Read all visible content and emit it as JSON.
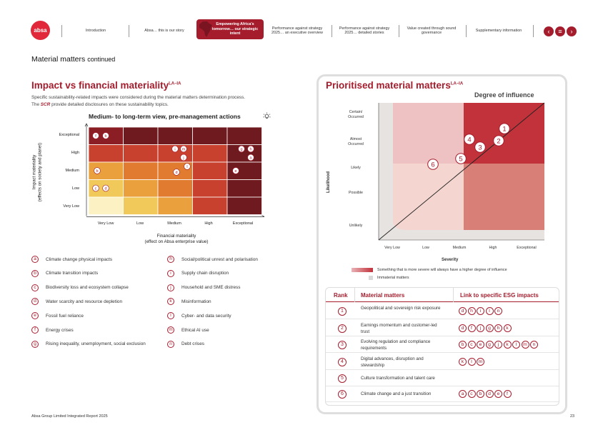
{
  "logo": "absa",
  "nav": {
    "items": [
      "Introduction",
      "Absa… this is our story",
      "Empowering Africa's tomorrow… our strategic intent",
      "Performance against strategy 2025… an executive overview",
      "Performance against strategy 2025… detailed stories",
      "Value created through sound governance",
      "Supplementary information"
    ],
    "active_index": 2,
    "buttons": [
      "‹",
      "≡",
      "›"
    ]
  },
  "section": {
    "title": "Material matters",
    "continued": "continued"
  },
  "left": {
    "title": "Impact vs financial materiality",
    "title_sup": "LA–IA",
    "desc_line1": "Specific sustainability-related impacts were considered during the material matters determination process.",
    "desc_scr": "SCR",
    "desc_line2_prefix": "The ",
    "desc_line2_suffix": " provide detailed disclosures on these sustainability topics.",
    "subtitle": "Medium- to long-term view, pre-management actions",
    "y_axis_label_1": "Impact materiality",
    "y_axis_label_2": "(effects on society and planet)",
    "x_axis_label_1": "Financial materiality",
    "x_axis_label_2": "(effect on Absa enterprise value)",
    "rows": [
      "Exceptional",
      "High",
      "Medium",
      "Low",
      "Very Low"
    ],
    "cols": [
      "Very Low",
      "Low",
      "Medium",
      "High",
      "Exceptional"
    ],
    "colors": {
      "darkest": "#6e1a1f",
      "dark": "#8a1e24",
      "red": "#c8402e",
      "orange": "#e07b2f",
      "amber": "#eaa03d",
      "yellow": "#f0c95a",
      "pale": "#fbf1c2"
    },
    "legend": [
      {
        "code": "a",
        "label": "Climate change physical impacts"
      },
      {
        "code": "b",
        "label": "Climate transition impacts"
      },
      {
        "code": "c",
        "label": "Biodiversity loss and ecosystem collapse"
      },
      {
        "code": "d",
        "label": "Water scarcity and resource depletion"
      },
      {
        "code": "e",
        "label": "Fossil fuel reliance"
      },
      {
        "code": "f",
        "label": "Energy crises"
      },
      {
        "code": "g",
        "label": "Rising inequality, unemployment, social exclusion"
      },
      {
        "code": "h",
        "label": "Social/political unrest and polarisation"
      },
      {
        "code": "i",
        "label": "Supply chain disruption"
      },
      {
        "code": "j",
        "label": "Household and SME distress"
      },
      {
        "code": "k",
        "label": "Misinformation"
      },
      {
        "code": "l",
        "label": "Cyber- and data security"
      },
      {
        "code": "m",
        "label": "Ethical AI use"
      },
      {
        "code": "n",
        "label": "Debt crises"
      }
    ]
  },
  "chart_data": {
    "type": "heatmap",
    "title": "Medium- to long-term view, pre-management actions",
    "xlabel": "Financial materiality (effect on Absa enterprise value)",
    "ylabel": "Impact materiality (effects on society and planet)",
    "x_categories": [
      "Very Low",
      "Low",
      "Medium",
      "High",
      "Exceptional"
    ],
    "y_categories": [
      "Exceptional",
      "High",
      "Medium",
      "Low",
      "Very Low"
    ],
    "cell_colors": [
      [
        "dark",
        "darkest",
        "darkest",
        "darkest",
        "darkest"
      ],
      [
        "red",
        "red",
        "red",
        "red",
        "darkest"
      ],
      [
        "amber",
        "orange",
        "orange",
        "red",
        "darkest"
      ],
      [
        "yellow",
        "amber",
        "orange",
        "red",
        "darkest"
      ],
      [
        "pale",
        "yellow",
        "amber",
        "red",
        "darkest"
      ]
    ],
    "points": [
      {
        "code": "f",
        "x": "Very Low",
        "y": "Exceptional"
      },
      {
        "code": "b",
        "x": "Very Low",
        "y": "Exceptional"
      },
      {
        "code": "i",
        "x": "Medium",
        "y": "High"
      },
      {
        "code": "m",
        "x": "Medium",
        "y": "High"
      },
      {
        "code": "j",
        "x": "Medium",
        "y": "High"
      },
      {
        "code": "g",
        "x": "Exceptional",
        "y": "High"
      },
      {
        "code": "h",
        "x": "Exceptional",
        "y": "High"
      },
      {
        "code": "a",
        "x": "Exceptional",
        "y": "High"
      },
      {
        "code": "b",
        "x": "Very Low",
        "y": "Medium"
      },
      {
        "code": "l",
        "x": "Medium",
        "y": "Medium"
      },
      {
        "code": "d",
        "x": "Medium",
        "y": "Medium"
      },
      {
        "code": "e",
        "x": "Exceptional",
        "y": "Medium"
      },
      {
        "code": "c",
        "x": "Very Low",
        "y": "Low"
      },
      {
        "code": "d",
        "x": "Very Low",
        "y": "Low"
      }
    ]
  },
  "right": {
    "title": "Prioritised material matters",
    "title_sup": "LA–IA",
    "degree_label": "Degree of influence",
    "likelihood_label": "Likelihood",
    "severity_label": "Severity",
    "y_levels": [
      "Certain/ Occurred",
      "Almost Occurred",
      "Likely",
      "Possible",
      "Unlikely"
    ],
    "x_levels": [
      "Very Low",
      "Low",
      "Medium",
      "High",
      "Exceptional"
    ],
    "quadrant_colors": {
      "top_right": "#c1323b",
      "top_left": "#eec2c2",
      "bottom_right": "#d88078",
      "bottom_left": "#f4d5cf",
      "immaterial": "#e6e3e1"
    },
    "ranks": [
      {
        "rank": "1",
        "severity": "Exceptional",
        "likelihood": "Certain/ Occurred"
      },
      {
        "rank": "2",
        "severity": "Exceptional",
        "likelihood": "Almost Occurred"
      },
      {
        "rank": "3",
        "severity": "High",
        "likelihood": "Almost Occurred"
      },
      {
        "rank": "4",
        "severity": "High",
        "likelihood": "Almost Occurred"
      },
      {
        "rank": "5",
        "severity": "High",
        "likelihood": "Likely"
      },
      {
        "rank": "6",
        "severity": "Medium",
        "likelihood": "Likely"
      }
    ],
    "legend_1": "Something that is more severe will always have a higher degree of influence",
    "legend_2": "Immaterial matters",
    "table": {
      "headers": [
        "Rank",
        "Material matters",
        "Link to specific ESG impacts"
      ],
      "rows": [
        {
          "rank": "1",
          "matter": "Geopolitical and sovereign risk exposure",
          "impacts": [
            "d",
            "h",
            "i",
            "l",
            "n"
          ]
        },
        {
          "rank": "2",
          "matter": "Earnings momentum and customer-led trust",
          "impacts": [
            "d",
            "f",
            "j",
            "g",
            "h",
            "k"
          ]
        },
        {
          "rank": "3",
          "matter": "Evolving regulation and compliance requirements",
          "impacts": [
            "b",
            "c",
            "e",
            "g",
            "j",
            "k",
            "l",
            "m",
            "n"
          ]
        },
        {
          "rank": "4",
          "matter": "Digital advances, disruption and stewardship",
          "impacts": [
            "k",
            "l",
            "m"
          ]
        },
        {
          "rank": "5",
          "matter": "Culture transformation and talent care",
          "impacts": []
        },
        {
          "rank": "6",
          "matter": "Climate change and a just transition",
          "impacts": [
            "a",
            "c",
            "b",
            "d",
            "e",
            "f"
          ]
        }
      ]
    }
  },
  "footer": {
    "text": "Absa Group Limited Integrated Report 2025",
    "page": "23"
  }
}
